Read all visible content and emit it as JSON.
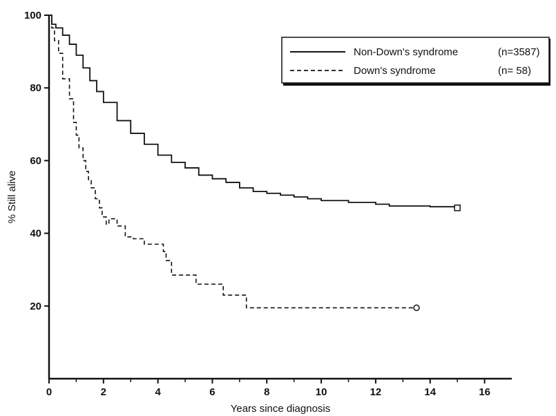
{
  "chart_data": {
    "type": "line",
    "title": "",
    "xlabel": "Years since diagnosis",
    "ylabel": "% Still alive",
    "xlim": [
      0,
      17
    ],
    "ylim": [
      0,
      100
    ],
    "x_ticks": [
      0,
      2,
      4,
      6,
      8,
      10,
      12,
      14,
      16
    ],
    "y_ticks": [
      20,
      40,
      60,
      80,
      100
    ],
    "grid": false,
    "legend_position": "top-right",
    "series": [
      {
        "name": "Non-Down's syndrome",
        "n_label": "(n=3587)",
        "style": "solid",
        "step": true,
        "end_marker": "square",
        "x": [
          0,
          0.1,
          0.25,
          0.5,
          0.75,
          1,
          1.25,
          1.5,
          1.75,
          2,
          2.5,
          3,
          3.5,
          4,
          4.5,
          5,
          5.5,
          6,
          6.5,
          7,
          7.5,
          8,
          8.5,
          9,
          9.5,
          10,
          11,
          12,
          12.5,
          13,
          14,
          15
        ],
        "y": [
          100,
          97.5,
          96.5,
          94.5,
          92,
          89,
          85.5,
          82,
          79,
          76,
          71,
          67.5,
          64.5,
          61.5,
          59.5,
          58,
          56,
          55,
          54,
          52.5,
          51.5,
          51,
          50.5,
          50,
          49.5,
          49,
          48.5,
          48,
          47.5,
          47.5,
          47.3,
          47
        ]
      },
      {
        "name": "Down's syndrome",
        "n_label": "(n=  58)",
        "style": "dashed",
        "step": true,
        "end_marker": "circle",
        "x": [
          0,
          0.1,
          0.2,
          0.35,
          0.5,
          0.75,
          0.9,
          1.0,
          1.1,
          1.25,
          1.35,
          1.45,
          1.55,
          1.7,
          1.85,
          1.95,
          2.1,
          2.2,
          2.5,
          2.8,
          3.1,
          3.5,
          4.0,
          4.2,
          4.3,
          4.5,
          4.6,
          5.4,
          6.4,
          7.25,
          13.5
        ],
        "y": [
          100,
          96.5,
          93,
          89.5,
          82.5,
          77,
          70.5,
          67,
          63.5,
          60,
          57,
          54.5,
          52.5,
          49.5,
          47,
          44.5,
          42.5,
          44,
          42,
          39,
          38.5,
          37,
          37,
          35,
          32.5,
          28.5,
          28.5,
          26,
          23,
          19.5,
          19.5
        ]
      }
    ]
  }
}
